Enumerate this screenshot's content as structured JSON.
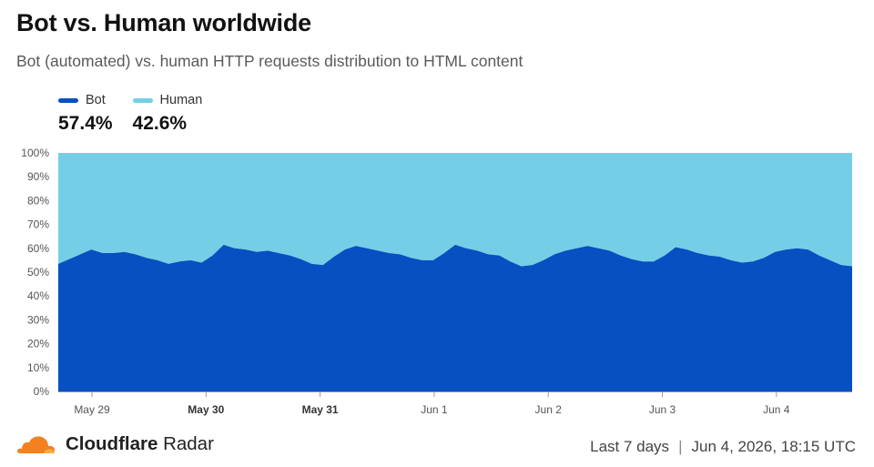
{
  "header": {
    "title": "Bot vs. Human worldwide",
    "subtitle": "Bot (automated) vs. human HTTP requests distribution to HTML content"
  },
  "legend": {
    "items": [
      {
        "label": "Bot",
        "value": "57.4%",
        "color": "#0650c2"
      },
      {
        "label": "Human",
        "value": "42.6%",
        "color": "#74cfe6"
      }
    ]
  },
  "footer": {
    "brand_bold": "Cloudflare",
    "brand_rest": "Radar",
    "range": "Last 7 days",
    "separator": "|",
    "timestamp": "Jun 4, 2026, 18:15 UTC"
  },
  "chart_data": {
    "type": "area",
    "stacked": true,
    "ylim": [
      0,
      100
    ],
    "yticks": [
      "0%",
      "10%",
      "20%",
      "30%",
      "40%",
      "50%",
      "60%",
      "70%",
      "80%",
      "90%",
      "100%"
    ],
    "xticks": [
      {
        "label": "May 29",
        "bold": false
      },
      {
        "label": "May 30",
        "bold": true
      },
      {
        "label": "May 31",
        "bold": true
      },
      {
        "label": "Jun 1",
        "bold": false
      },
      {
        "label": "Jun 2",
        "bold": false
      },
      {
        "label": "Jun 3",
        "bold": false
      },
      {
        "label": "Jun 4",
        "bold": false
      }
    ],
    "series": [
      {
        "name": "Bot",
        "color": "#0650c2",
        "values": [
          53.5,
          55.5,
          57.5,
          59.5,
          58.0,
          58.0,
          58.5,
          57.5,
          56.0,
          55.0,
          53.5,
          54.5,
          55.0,
          54.0,
          57.0,
          61.5,
          60.0,
          59.5,
          58.5,
          59.0,
          58.0,
          57.0,
          55.5,
          53.5,
          53.0,
          56.5,
          59.5,
          61.0,
          60.0,
          59.0,
          58.0,
          57.5,
          56.0,
          55.0,
          55.0,
          58.0,
          61.5,
          60.0,
          59.0,
          57.5,
          57.0,
          54.5,
          52.5,
          53.0,
          55.0,
          57.5,
          59.0,
          60.0,
          61.0,
          60.0,
          59.0,
          57.0,
          55.5,
          54.5,
          54.5,
          57.0,
          60.5,
          59.5,
          58.0,
          57.0,
          56.5,
          55.0,
          54.0,
          54.5,
          56.0,
          58.5,
          59.5,
          60.0,
          59.5,
          57.0,
          55.0,
          53.0,
          52.5
        ]
      },
      {
        "name": "Human",
        "color": "#74cfe6",
        "values": [
          46.5,
          44.5,
          42.5,
          40.5,
          42.0,
          42.0,
          41.5,
          42.5,
          44.0,
          45.0,
          46.5,
          45.5,
          45.0,
          46.0,
          43.0,
          38.5,
          40.0,
          40.5,
          41.5,
          41.0,
          42.0,
          43.0,
          44.5,
          46.5,
          47.0,
          43.5,
          40.5,
          39.0,
          40.0,
          41.0,
          42.0,
          42.5,
          44.0,
          45.0,
          45.0,
          42.0,
          38.5,
          40.0,
          41.0,
          42.5,
          43.0,
          45.5,
          47.5,
          47.0,
          45.0,
          42.5,
          41.0,
          40.0,
          39.0,
          40.0,
          41.0,
          43.0,
          44.5,
          45.5,
          45.5,
          43.0,
          39.5,
          40.5,
          42.0,
          43.0,
          43.5,
          45.0,
          46.0,
          45.5,
          44.0,
          41.5,
          40.5,
          40.0,
          40.5,
          43.0,
          45.0,
          47.0,
          47.5
        ]
      }
    ]
  }
}
